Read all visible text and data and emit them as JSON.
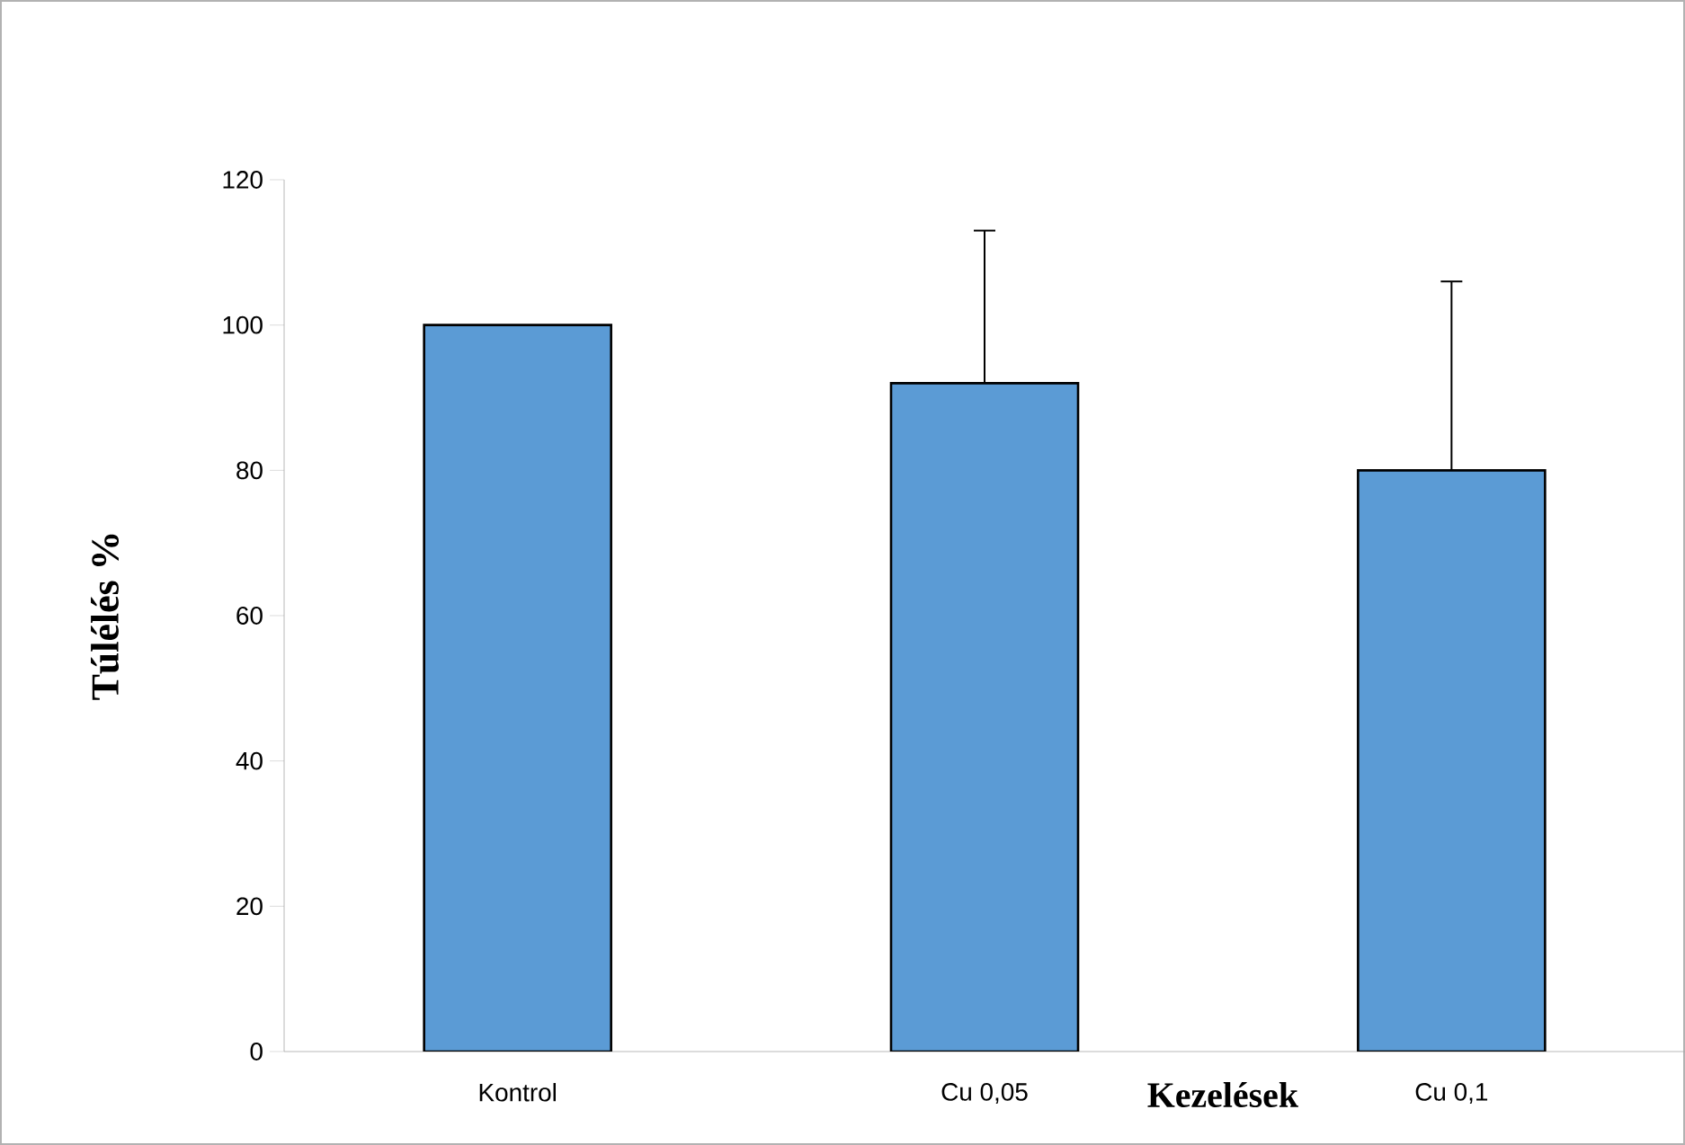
{
  "chart_data": {
    "type": "bar",
    "xlabel": "Kezelések",
    "ylabel": "Túlélés %",
    "categories": [
      "Kontrol",
      "Cu 0,05",
      "Cu 0,1"
    ],
    "values": [
      100,
      92,
      80
    ],
    "errors": [
      null,
      [
        92,
        113
      ],
      [
        80,
        106
      ]
    ],
    "color": "#5b9bd5",
    "ylim": [
      0,
      120
    ],
    "yticks": [
      0,
      20,
      40,
      60,
      80,
      100,
      120
    ],
    "grid": false
  }
}
